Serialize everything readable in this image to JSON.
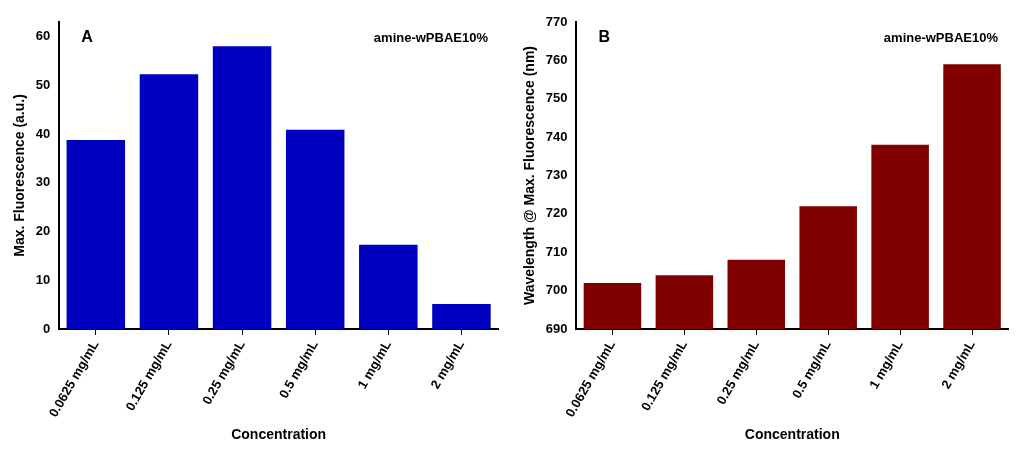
{
  "chart_data": [
    {
      "type": "bar",
      "categories": [
        "0.0625 mg/mL",
        "0.125 mg/mL",
        "0.25 mg/mL",
        "0.5 mg/mL",
        "1 mg/mL",
        "2 mg/mL"
      ],
      "xlabel": "Concentration",
      "ylabel": "Max. Fluorescence (a.u.)",
      "annotations": [
        "A",
        "amine-wPBAE10%"
      ],
      "series": [
        {
          "color": "#0000c0",
          "values": [
            38.8,
            52.3,
            58,
            40.9,
            17.3,
            5.1
          ]
        }
      ],
      "ylim": [
        0,
        63
      ],
      "yticks": [
        0,
        10,
        20,
        30,
        40,
        50,
        60
      ],
      "grid": false,
      "legend": false
    },
    {
      "type": "bar",
      "categories": [
        "0.0625 mg/mL",
        "0.125 mg/mL",
        "0.25 mg/mL",
        "0.5 mg/mL",
        "1 mg/mL",
        "2 mg/mL"
      ],
      "xlabel": "Concentration",
      "ylabel": "Wavelength @ Max. Fluorescence (nm)",
      "annotations": [
        "B",
        "amine-wPBAE10%"
      ],
      "series": [
        {
          "color": "#800000",
          "values": [
            702,
            704,
            708,
            722,
            738,
            759
          ]
        }
      ],
      "ylim": [
        690,
        770
      ],
      "yticks": [
        690,
        700,
        710,
        720,
        730,
        740,
        750,
        760,
        770
      ],
      "grid": false,
      "legend": false
    }
  ]
}
